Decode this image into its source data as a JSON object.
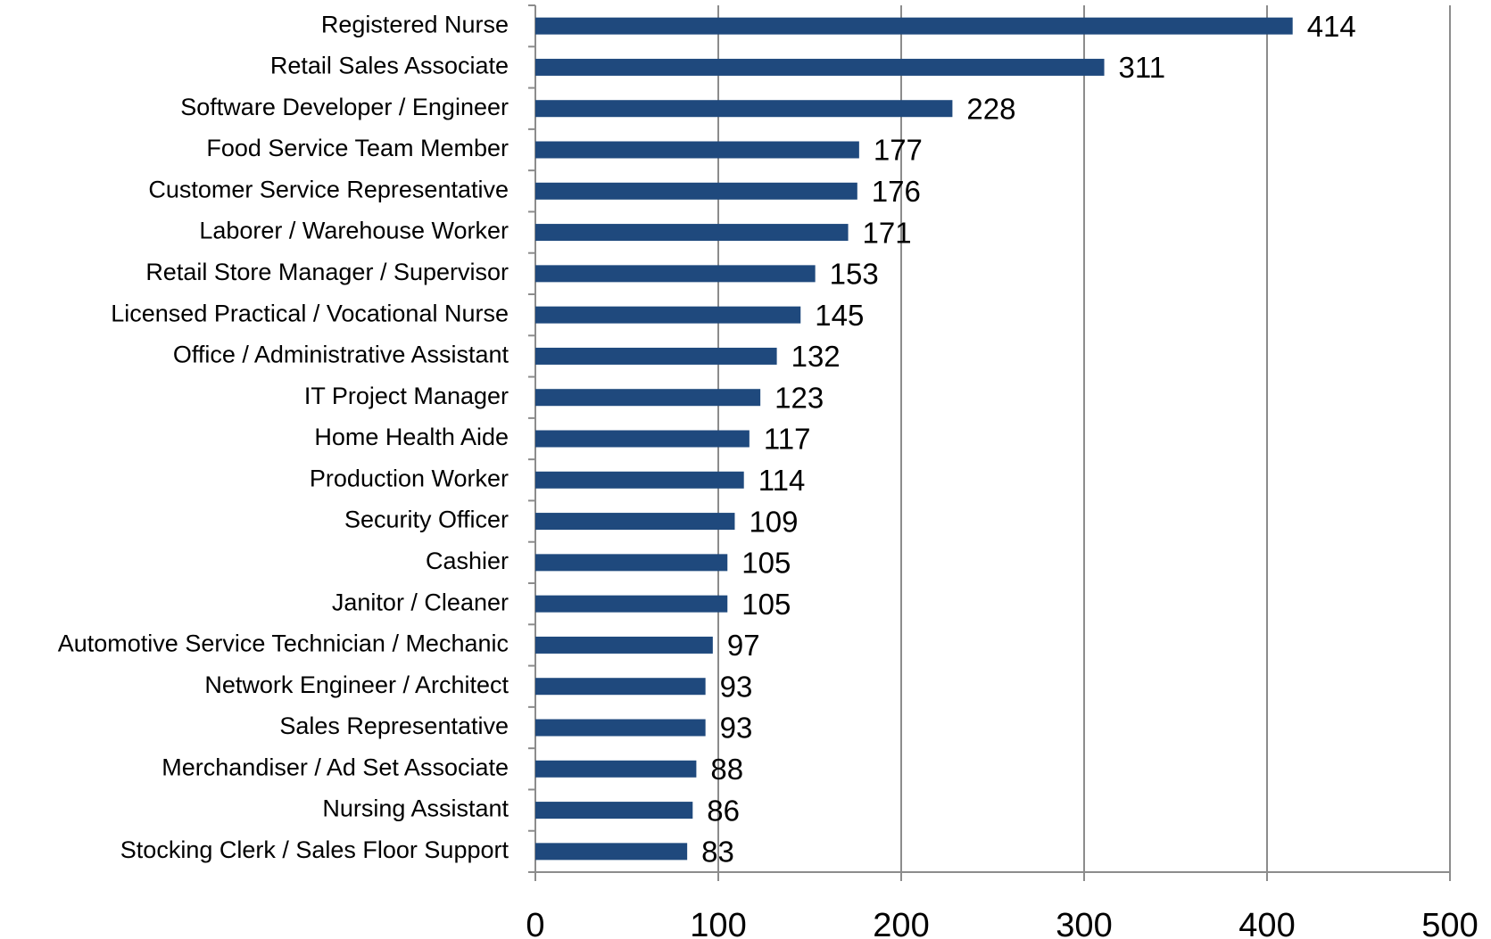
{
  "chart_data": {
    "type": "bar",
    "orientation": "horizontal",
    "categories": [
      "Registered Nurse",
      "Retail Sales Associate",
      "Software Developer / Engineer",
      "Food Service Team Member",
      "Customer Service Representative",
      "Laborer / Warehouse Worker",
      "Retail Store Manager / Supervisor",
      "Licensed Practical / Vocational Nurse",
      "Office / Administrative Assistant",
      "IT Project Manager",
      "Home Health Aide",
      "Production Worker",
      "Security Officer",
      "Cashier",
      "Janitor / Cleaner",
      "Automotive Service Technician / Mechanic",
      "Network Engineer / Architect",
      "Sales Representative",
      "Merchandiser / Ad Set Associate",
      "Nursing Assistant",
      "Stocking Clerk / Sales Floor Support"
    ],
    "values": [
      414,
      311,
      228,
      177,
      176,
      171,
      153,
      145,
      132,
      123,
      117,
      114,
      109,
      105,
      105,
      97,
      93,
      93,
      88,
      86,
      83
    ],
    "color": "#1f497d",
    "xlim": [
      0,
      500
    ],
    "xticks": [
      0,
      100,
      200,
      300,
      400,
      500
    ],
    "grid": true
  }
}
